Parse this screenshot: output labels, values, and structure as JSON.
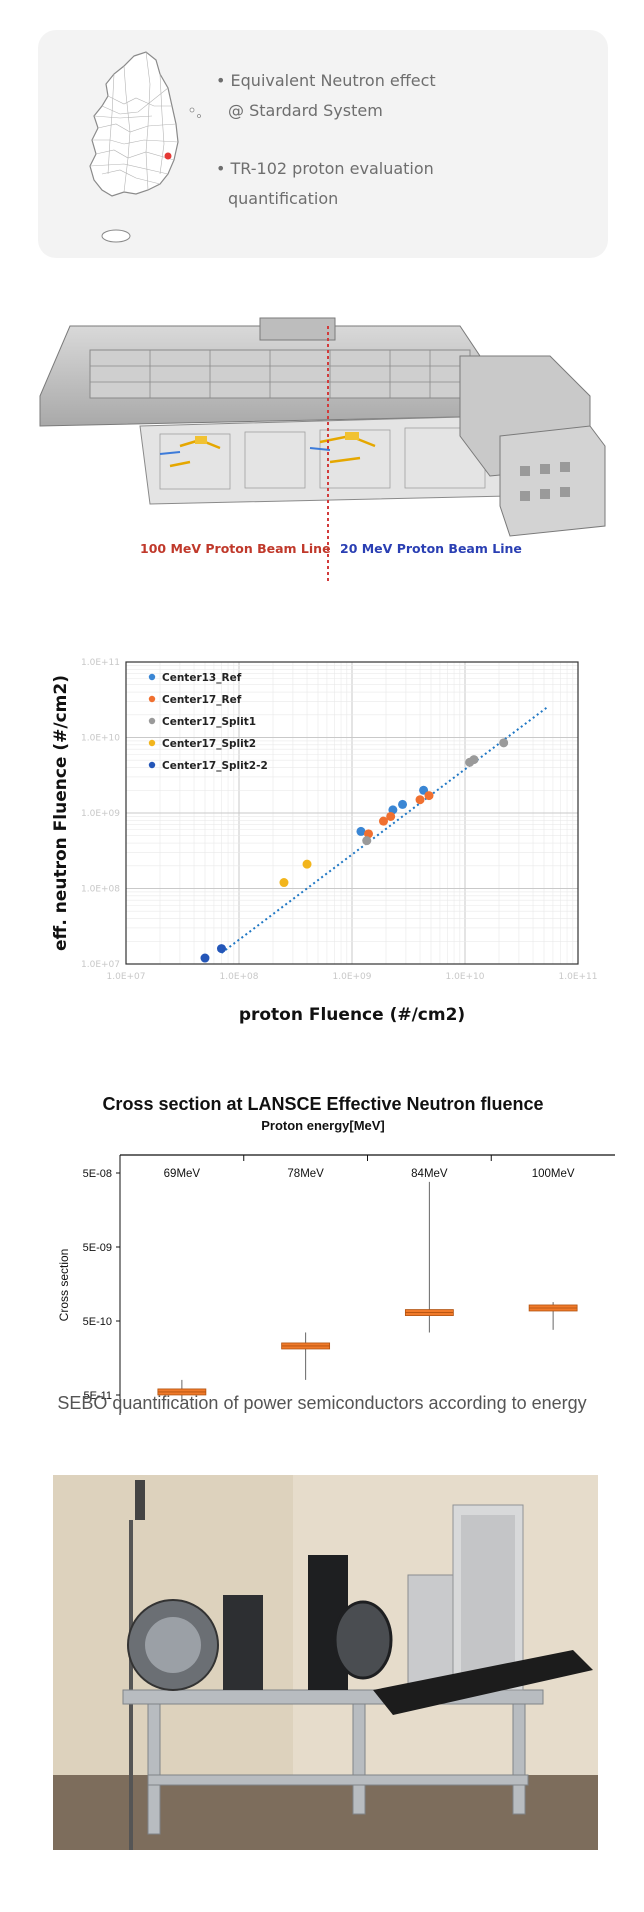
{
  "info_card": {
    "bullets": [
      {
        "line1": "Equivalent Neutron effect",
        "line2": "@ Stardard System"
      },
      {
        "line1": "TR-102 proton evaluation",
        "line2": "quantification"
      }
    ],
    "marker_color": "#e53935"
  },
  "facility": {
    "label_100": "100 MeV Proton Beam Line",
    "label_20": "20 MeV Proton Beam Line",
    "color_100": "#c0392b",
    "color_20": "#2a3fb3"
  },
  "chart_data": [
    {
      "type": "scatter",
      "xscale": "log",
      "yscale": "log",
      "xlabel": "proton Fluence (#/cm2)",
      "ylabel": "eff. neutron Fluence (#/cm2)",
      "xlim": [
        10000000.0,
        100000000000.0
      ],
      "ylim": [
        10000000.0,
        100000000000.0
      ],
      "x_ticks": [
        "1.0E+07",
        "1.0E+08",
        "1.0E+09",
        "1.0E+10",
        "1.0E+11"
      ],
      "y_ticks": [
        "1.0E+07",
        "1.0E+08",
        "1.0E+09",
        "1.0E+10",
        "1.0E+11"
      ],
      "grid": true,
      "legend_position": "top-left",
      "trendline": {
        "x": [
          70000000.0,
          55000000000.0
        ],
        "y": [
          14000000.0,
          26000000000.0
        ],
        "color": "#1f77c4"
      },
      "series": [
        {
          "name": "Center13_Ref",
          "color": "#3a86d4",
          "points": [
            [
              1200000000.0,
              570000000.0
            ],
            [
              2300000000.0,
              1100000000.0
            ],
            [
              2800000000.0,
              1300000000.0
            ],
            [
              4300000000.0,
              2000000000.0
            ]
          ]
        },
        {
          "name": "Center17_Ref",
          "color": "#f07030",
          "points": [
            [
              1400000000.0,
              530000000.0
            ],
            [
              1900000000.0,
              780000000.0
            ],
            [
              2200000000.0,
              900000000.0
            ],
            [
              4000000000.0,
              1500000000.0
            ],
            [
              4800000000.0,
              1700000000.0
            ]
          ]
        },
        {
          "name": "Center17_Split1",
          "color": "#9a9a9a",
          "points": [
            [
              1350000000.0,
              430000000.0
            ],
            [
              11000000000.0,
              4700000000.0
            ],
            [
              12000000000.0,
              5100000000.0
            ],
            [
              22000000000.0,
              8500000000.0
            ]
          ]
        },
        {
          "name": "Center17_Split2",
          "color": "#f2b51c",
          "points": [
            [
              250000000.0,
              120000000.0
            ],
            [
              400000000.0,
              210000000.0
            ]
          ]
        },
        {
          "name": "Center17_Split2-2",
          "color": "#2456b8",
          "points": [
            [
              50000000.0,
              12000000.0
            ],
            [
              70000000.0,
              16000000.0
            ]
          ]
        }
      ]
    },
    {
      "type": "bar",
      "title": "Cross section at LANSCE Effective Neutron fluence",
      "subtitle": "Proton energy[MeV]",
      "ylabel": "Cross section",
      "yscale": "log",
      "ylim": [
        5e-11,
        5e-08
      ],
      "y_ticks": [
        "5E-08",
        "5E-09",
        "5E-10",
        "5E-11"
      ],
      "categories": [
        "69MeV",
        "78MeV",
        "84MeV",
        "100MeV"
      ],
      "values": [
        5.5e-11,
        2.3e-10,
        6.5e-10,
        7.5e-10
      ],
      "error_low": [
        4e-11,
        8e-11,
        3.5e-10,
        3.8e-10
      ],
      "error_high": [
        8e-11,
        3.5e-10,
        3.8e-08,
        9e-10
      ],
      "color": "#f07a2a"
    }
  ],
  "caption": "SEBO quantification of power semiconductors according to energy"
}
